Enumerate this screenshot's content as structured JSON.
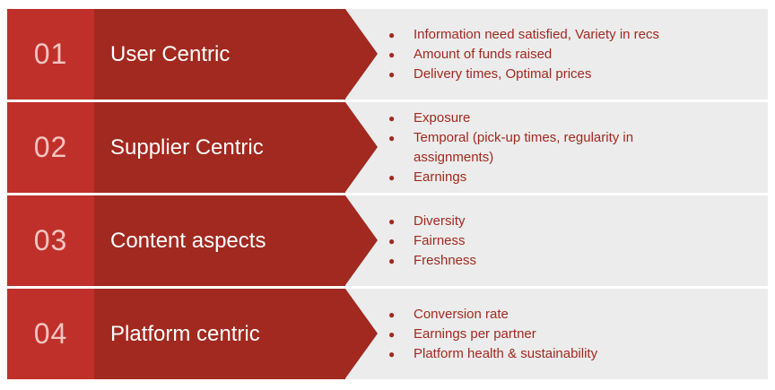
{
  "rows": [
    {
      "number": "01",
      "title": "User Centric",
      "items": [
        "Information need satisfied, Variety in recs",
        "Amount of funds raised",
        "Delivery times, Optimal prices"
      ]
    },
    {
      "number": "02",
      "title": "Supplier Centric",
      "items": [
        "Exposure",
        "Temporal (pick-up times, regularity in assignments)",
        "Earnings"
      ]
    },
    {
      "number": "03",
      "title": "Content aspects",
      "items": [
        "Diversity",
        "Fairness",
        "Freshness"
      ]
    },
    {
      "number": "04",
      "title": "Platform centric",
      "items": [
        "Conversion rate",
        "Earnings per partner",
        "Platform health & sustainability"
      ]
    }
  ],
  "bullet_glyph": "●",
  "colors": {
    "number_block": "#c0302a",
    "title_block": "#a2291f",
    "panel_bg": "#ececec",
    "text_red": "#a2291f"
  }
}
